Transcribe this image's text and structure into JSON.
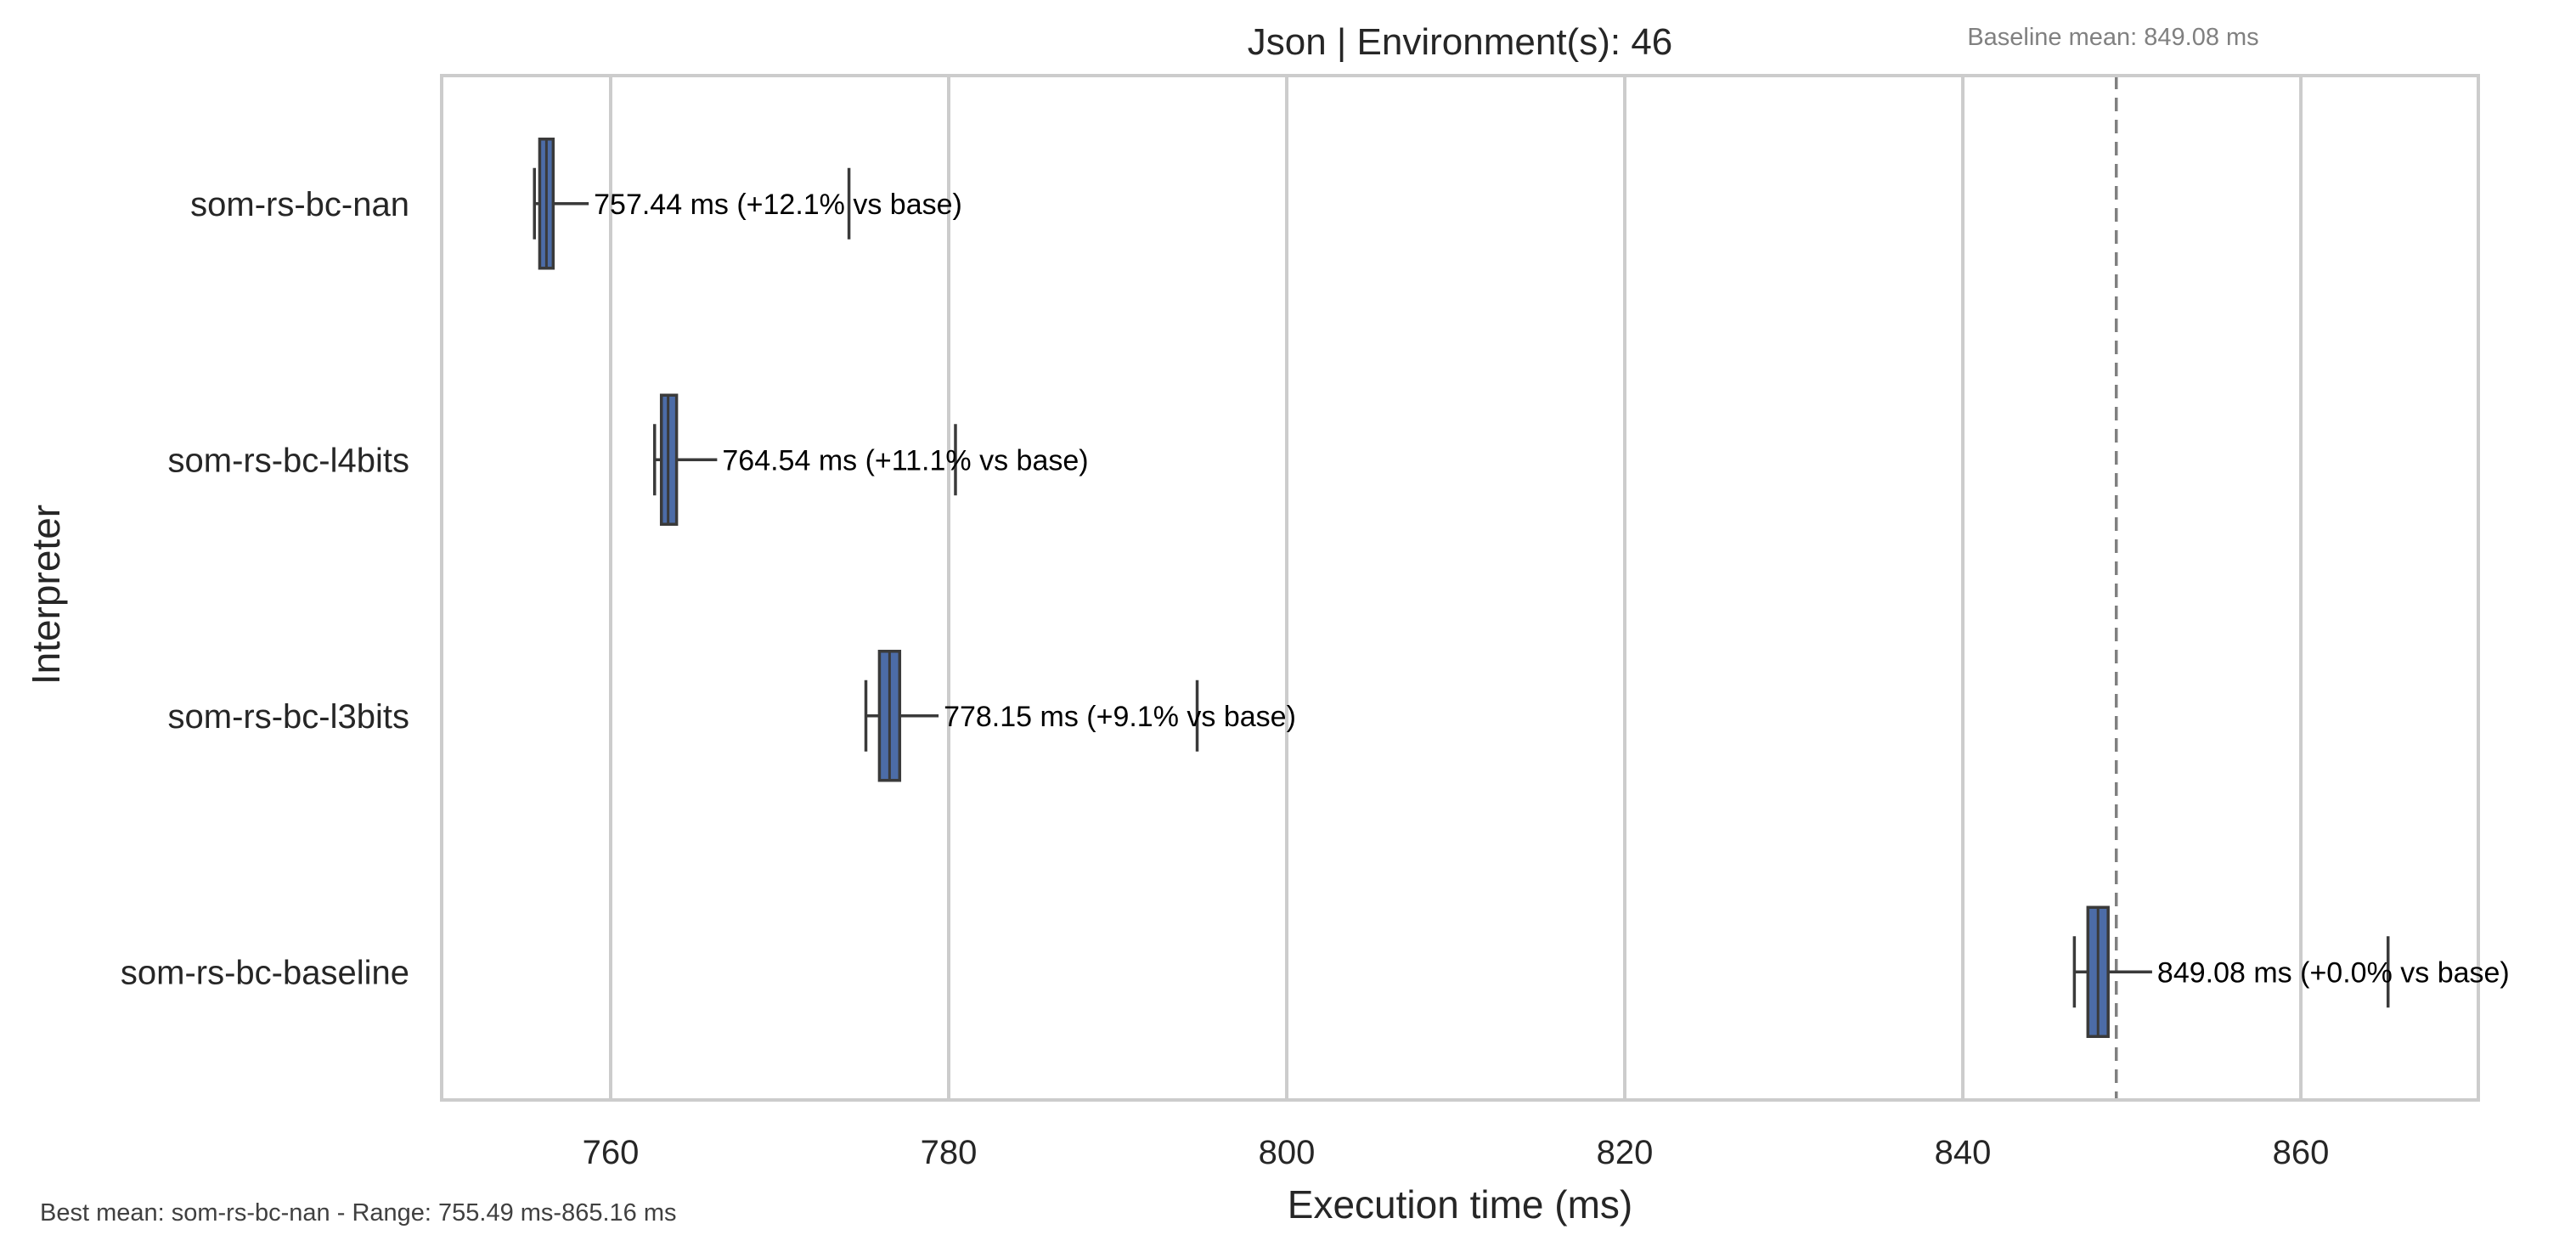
{
  "chart_data": {
    "type": "boxplot",
    "orientation": "horizontal",
    "title": "Json | Environment(s): 46",
    "baseline_note": "Baseline mean: 849.08 ms",
    "xlabel": "Execution time (ms)",
    "ylabel": "Interpreter",
    "xlim": [
      750,
      870.5
    ],
    "xticks": [
      760,
      780,
      800,
      820,
      840,
      860
    ],
    "grid": true,
    "baseline_value": 849.08,
    "categories": [
      "som-rs-bc-nan",
      "som-rs-bc-l4bits",
      "som-rs-bc-l3bits",
      "som-rs-bc-baseline"
    ],
    "boxes": [
      {
        "name": "som-rs-bc-nan",
        "whisker_low": 755.49,
        "q1": 755.8,
        "median": 756.2,
        "q3": 756.6,
        "whisker_high": 758.7,
        "outliers": [
          774.1
        ],
        "mean_label": "757.44 ms  (+12.1% vs base)"
      },
      {
        "name": "som-rs-bc-l4bits",
        "whisker_low": 762.6,
        "q1": 763.0,
        "median": 763.4,
        "q3": 763.9,
        "whisker_high": 766.3,
        "outliers": [
          780.4
        ],
        "mean_label": "764.54 ms  (+11.1% vs base)"
      },
      {
        "name": "som-rs-bc-l3bits",
        "whisker_low": 775.1,
        "q1": 775.9,
        "median": 776.5,
        "q3": 777.1,
        "whisker_high": 779.4,
        "outliers": [
          794.7
        ],
        "mean_label": "778.15 ms  (+9.1% vs base)"
      },
      {
        "name": "som-rs-bc-baseline",
        "whisker_low": 846.6,
        "q1": 847.4,
        "median": 848.0,
        "q3": 848.6,
        "whisker_high": 851.2,
        "outliers": [
          865.16
        ],
        "mean_label": "849.08 ms  (+0.0% vs base)"
      }
    ],
    "footer": "Best mean: som-rs-bc-nan - Range: 755.49 ms-865.16 ms"
  },
  "colors": {
    "box_fill": "#4c6ca7",
    "box_edge": "#3a3a3a",
    "grid": "#cccccc",
    "frame": "#cccccc",
    "baseline_line": "#808080"
  }
}
